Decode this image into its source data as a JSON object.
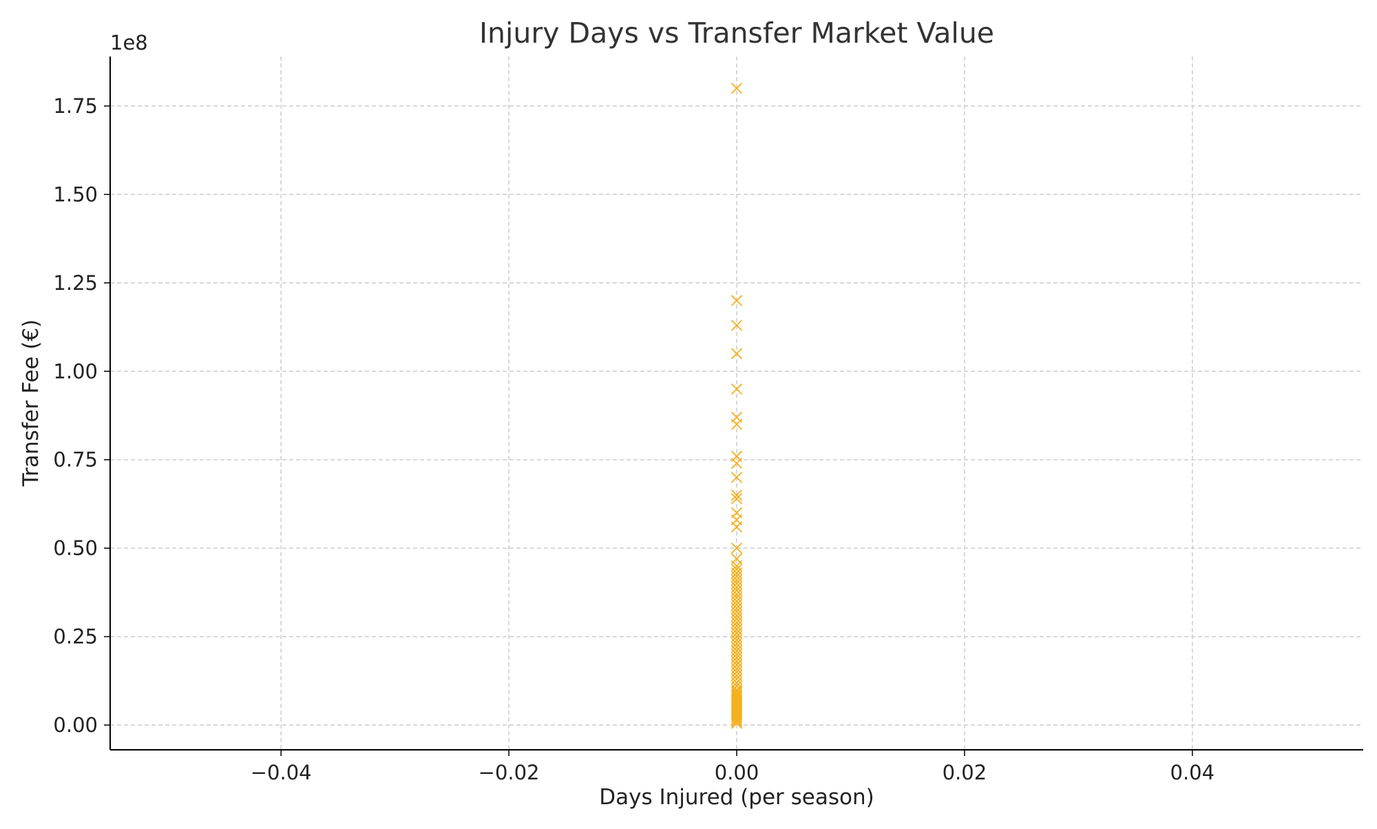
{
  "chart_data": {
    "type": "scatter",
    "title": "Injury Days vs Transfer Market Value",
    "xlabel": "Days Injured (per season)",
    "ylabel": "Transfer Fee (€)",
    "y_offset_label": "1e8",
    "xlim": [
      -0.055,
      0.055
    ],
    "ylim": [
      -7000000,
      189000000
    ],
    "x_ticks": [
      -0.04,
      -0.02,
      0.0,
      0.02,
      0.04
    ],
    "x_tick_labels": [
      "−0.04",
      "−0.02",
      "0.00",
      "0.02",
      "0.04"
    ],
    "y_ticks": [
      0,
      25000000,
      50000000,
      75000000,
      100000000,
      125000000,
      150000000,
      175000000
    ],
    "y_tick_labels": [
      "0.00",
      "0.25",
      "0.50",
      "0.75",
      "1.00",
      "1.25",
      "1.50",
      "1.75"
    ],
    "grid": true,
    "marker": "x",
    "marker_color": "#F5B01E",
    "series": [
      {
        "x": [
          0,
          0,
          0,
          0,
          0,
          0,
          0,
          0,
          0,
          0,
          0,
          0,
          0,
          0,
          0,
          0,
          0,
          0,
          0,
          0,
          0,
          0,
          0,
          0,
          0,
          0,
          0,
          0,
          0,
          0,
          0,
          0,
          0,
          0,
          0,
          0,
          0,
          0,
          0,
          0,
          0,
          0,
          0,
          0,
          0,
          0,
          0,
          0,
          0,
          0,
          0,
          0,
          0,
          0,
          0,
          0,
          0,
          0,
          0,
          0,
          0,
          0,
          0,
          0,
          0,
          0,
          0,
          0,
          0,
          0,
          0,
          0
        ],
        "y": [
          180000000,
          120000000,
          113000000,
          105000000,
          95000000,
          87000000,
          85000000,
          76000000,
          74000000,
          70000000,
          65000000,
          64000000,
          60000000,
          58000000,
          56000000,
          50000000,
          47000000,
          45000000,
          44000000,
          43000000,
          42000000,
          41000000,
          40000000,
          39000000,
          38000000,
          37000000,
          36000000,
          35000000,
          34000000,
          33000000,
          32000000,
          31000000,
          30000000,
          29000000,
          28000000,
          27000000,
          26000000,
          25000000,
          24000000,
          23000000,
          22000000,
          21000000,
          20000000,
          19000000,
          18000000,
          17000000,
          16000000,
          15000000,
          14000000,
          13000000,
          12000000,
          11000000,
          10000000,
          9500000,
          9000000,
          8500000,
          8000000,
          7500000,
          7000000,
          6500000,
          6000000,
          5500000,
          5000000,
          4500000,
          4000000,
          3500000,
          3000000,
          2500000,
          2000000,
          1500000,
          1000000,
          500000
        ]
      }
    ]
  }
}
